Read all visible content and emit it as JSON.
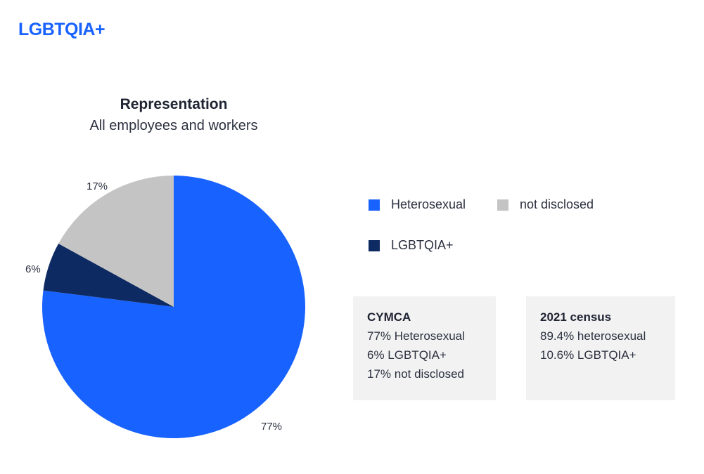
{
  "page": {
    "heading": "LGBTQIA+"
  },
  "chart_data": {
    "type": "pie",
    "title": "Representation",
    "subtitle": "All employees and workers",
    "slices": [
      {
        "label": "Heterosexual",
        "value": 77,
        "display": "77%",
        "color": "#1862ff"
      },
      {
        "label": "LGBTQIA+",
        "value": 6,
        "display": "6%",
        "color": "#0d2a62"
      },
      {
        "label": "not disclosed",
        "value": 17,
        "display": "17%",
        "color": "#c4c4c4"
      }
    ],
    "legend": [
      {
        "label": "Heterosexual",
        "color": "#1862ff"
      },
      {
        "label": "not disclosed",
        "color": "#c4c4c4"
      },
      {
        "label": "LGBTQIA+",
        "color": "#0d2a62"
      }
    ]
  },
  "boxes": {
    "cymca": {
      "title": "CYMCA",
      "lines": [
        "77% Heterosexual",
        "6% LGBTQIA+",
        "17% not disclosed"
      ]
    },
    "census": {
      "title": "2021 census",
      "lines": [
        "89.4% heterosexual",
        "10.6% LGBTQIA+"
      ]
    }
  }
}
